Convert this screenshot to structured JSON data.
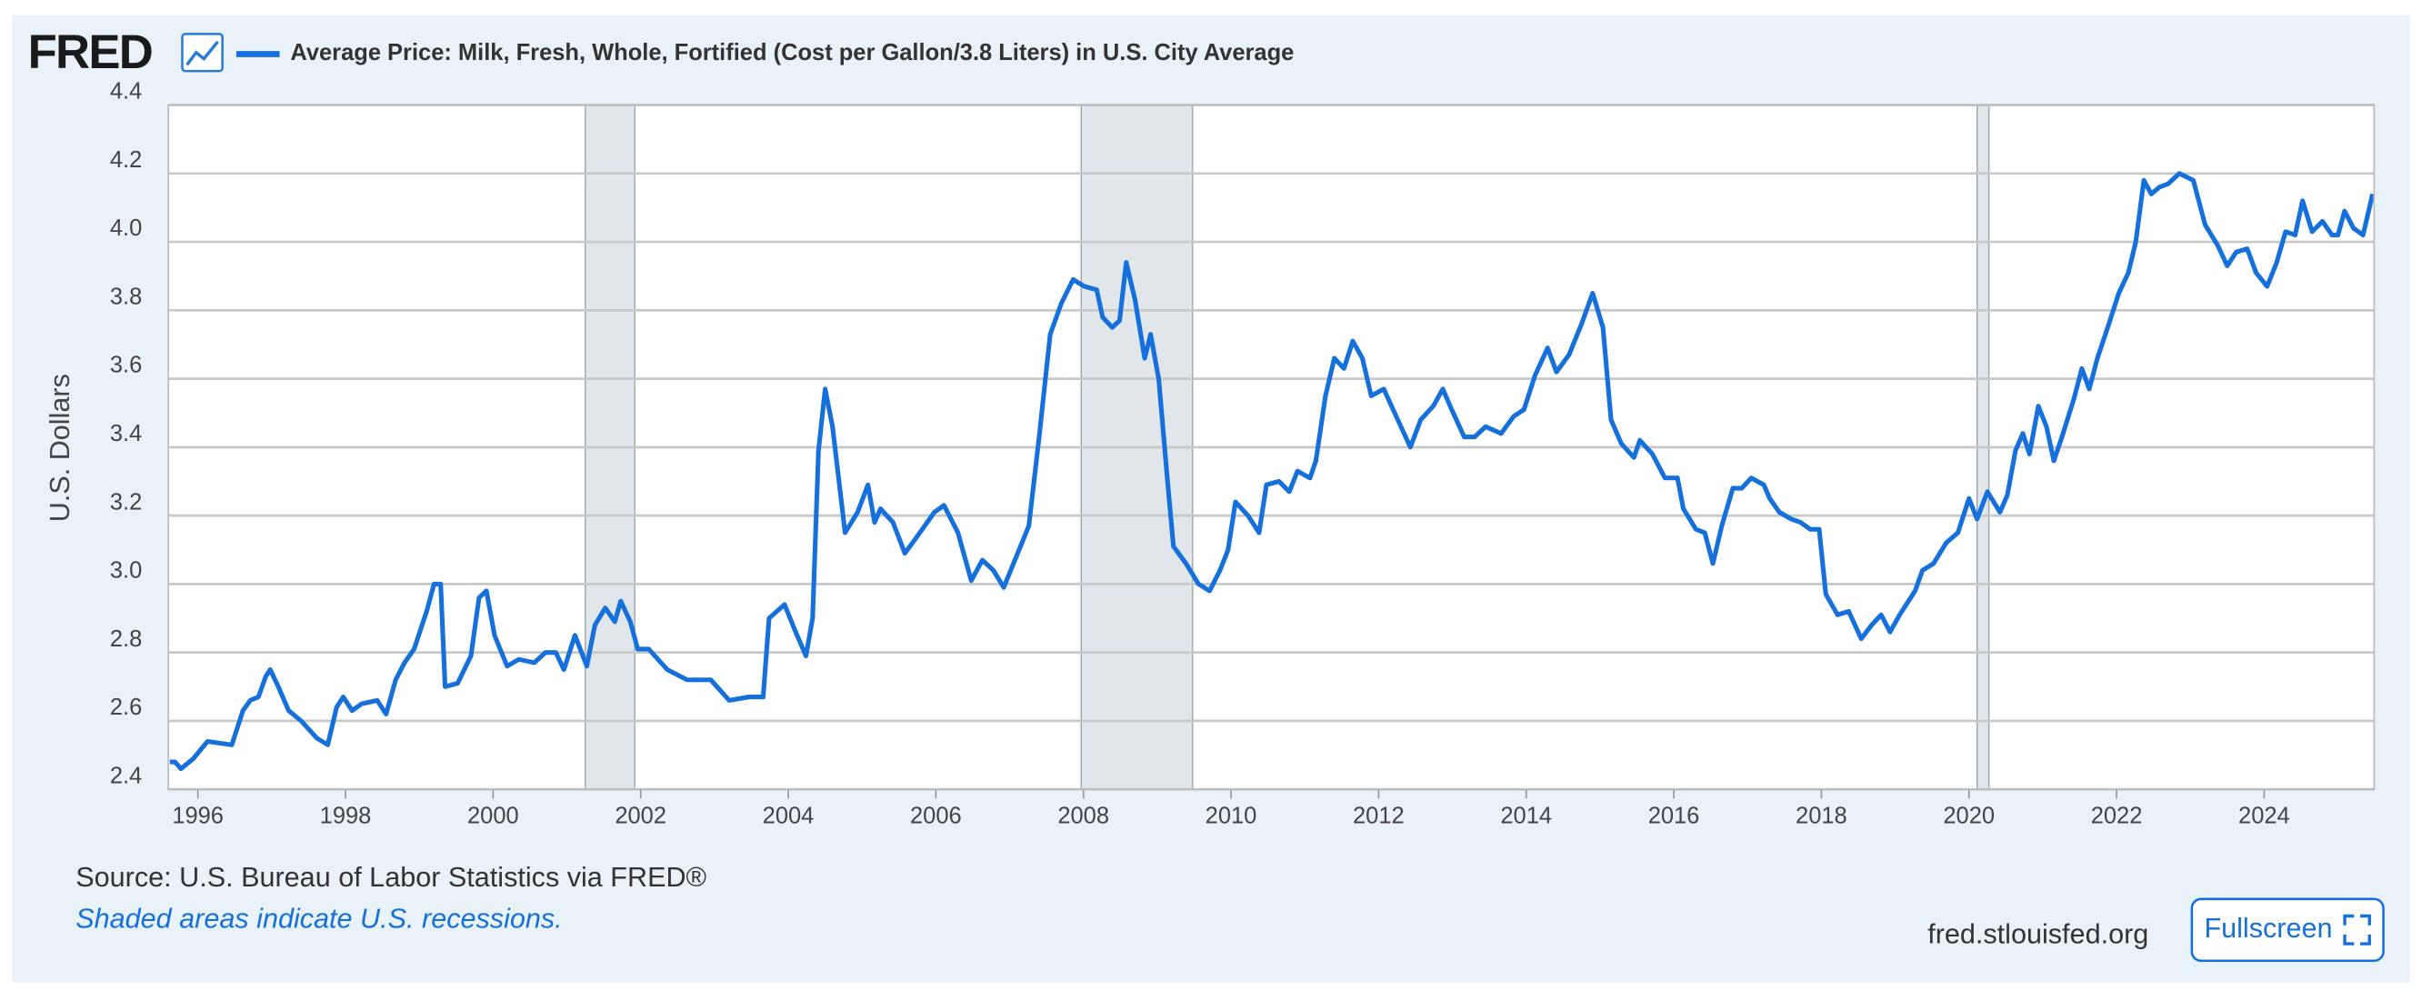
{
  "header": {
    "logo": "FRED"
  },
  "chart_data": {
    "type": "line",
    "ylabel": "U.S. Dollars",
    "xlim": [
      1995.6,
      2025.49
    ],
    "ylim": [
      2.4,
      4.4
    ],
    "xticks": [
      1996,
      1998,
      2000,
      2002,
      2004,
      2006,
      2008,
      2010,
      2012,
      2014,
      2016,
      2018,
      2020,
      2022,
      2024
    ],
    "yticks": [
      2.4,
      2.6,
      2.8,
      {
        "value": 3,
        "label": "3.0"
      },
      3.2,
      3.4,
      3.6,
      3.8,
      {
        "value": 4,
        "label": "4.0"
      },
      4.2,
      4.4
    ],
    "grid": true,
    "recessions": [
      [
        2001.25,
        2001.92
      ],
      [
        2007.97,
        2009.48
      ],
      [
        2020.11,
        2020.27
      ]
    ],
    "series": [
      {
        "name": "Average Price: Milk, Fresh, Whole, Fortified (Cost per Gallon/3.8 Liters) in U.S. City Average",
        "color": "#1670dc",
        "x": [
          1995.62,
          1995.69,
          1995.77,
          1995.94,
          1996.13,
          1996.46,
          1996.61,
          1996.71,
          1996.82,
          1996.92,
          1996.98,
          1997.09,
          1997.23,
          1997.4,
          1997.61,
          1997.76,
          1997.88,
          1997.97,
          1998.09,
          1998.22,
          1998.43,
          1998.55,
          1998.68,
          1998.8,
          1998.93,
          1999.1,
          1999.2,
          1999.29,
          1999.35,
          1999.52,
          1999.7,
          1999.81,
          1999.91,
          2000.02,
          2000.19,
          2000.35,
          2000.56,
          2000.71,
          2000.85,
          2000.96,
          2001.11,
          2001.27,
          2001.38,
          2001.52,
          2001.65,
          2001.73,
          2001.86,
          2001.96,
          2002.11,
          2002.36,
          2002.63,
          2002.95,
          2003.2,
          2003.47,
          2003.66,
          2003.74,
          2003.95,
          2004.1,
          2004.24,
          2004.33,
          2004.41,
          2004.5,
          2004.6,
          2004.77,
          2004.94,
          2005.08,
          2005.17,
          2005.25,
          2005.42,
          2005.58,
          2005.75,
          2005.98,
          2006.11,
          2006.3,
          2006.48,
          2006.63,
          2006.78,
          2006.92,
          2007.09,
          2007.26,
          2007.4,
          2007.55,
          2007.7,
          2007.86,
          2008.01,
          2008.18,
          2008.26,
          2008.39,
          2008.49,
          2008.58,
          2008.7,
          2008.83,
          2008.91,
          2009.02,
          2009.14,
          2009.22,
          2009.39,
          2009.56,
          2009.71,
          2009.85,
          2009.96,
          2010.06,
          2010.23,
          2010.38,
          2010.48,
          2010.65,
          2010.79,
          2010.9,
          2011.07,
          2011.15,
          2011.28,
          2011.4,
          2011.53,
          2011.65,
          2011.78,
          2011.9,
          2012.07,
          2012.26,
          2012.43,
          2012.57,
          2012.74,
          2012.87,
          2012.99,
          2013.16,
          2013.3,
          2013.45,
          2013.66,
          2013.83,
          2013.97,
          2014.12,
          2014.29,
          2014.41,
          2014.58,
          2014.75,
          2014.9,
          2015.04,
          2015.15,
          2015.29,
          2015.46,
          2015.54,
          2015.71,
          2015.88,
          2016.05,
          2016.13,
          2016.3,
          2016.42,
          2016.53,
          2016.65,
          2016.8,
          2016.92,
          2017.05,
          2017.22,
          2017.3,
          2017.43,
          2017.59,
          2017.72,
          2017.85,
          2017.97,
          2018.06,
          2018.22,
          2018.37,
          2018.54,
          2018.68,
          2018.81,
          2018.93,
          2019.06,
          2019.27,
          2019.37,
          2019.52,
          2019.69,
          2019.85,
          2020.0,
          2020.11,
          2020.25,
          2020.42,
          2020.52,
          2020.63,
          2020.73,
          2020.82,
          2020.94,
          2021.05,
          2021.15,
          2021.26,
          2021.42,
          2021.53,
          2021.63,
          2021.74,
          2021.88,
          2022.03,
          2022.16,
          2022.26,
          2022.37,
          2022.47,
          2022.58,
          2022.7,
          2022.85,
          2023.04,
          2023.2,
          2023.37,
          2023.5,
          2023.62,
          2023.77,
          2023.89,
          2024.04,
          2024.17,
          2024.29,
          2024.42,
          2024.52,
          2024.65,
          2024.79,
          2024.92,
          2025.0,
          2025.09,
          2025.21,
          2025.34,
          2025.47
        ],
        "values": [
          2.48,
          2.48,
          2.46,
          2.49,
          2.54,
          2.53,
          2.63,
          2.66,
          2.67,
          2.73,
          2.75,
          2.7,
          2.63,
          2.6,
          2.55,
          2.53,
          2.64,
          2.67,
          2.63,
          2.65,
          2.66,
          2.62,
          2.72,
          2.77,
          2.81,
          2.92,
          3.0,
          3.0,
          2.7,
          2.71,
          2.79,
          2.96,
          2.98,
          2.85,
          2.76,
          2.78,
          2.77,
          2.8,
          2.8,
          2.75,
          2.85,
          2.76,
          2.88,
          2.93,
          2.89,
          2.95,
          2.89,
          2.81,
          2.81,
          2.75,
          2.72,
          2.72,
          2.66,
          2.67,
          2.67,
          2.9,
          2.94,
          2.86,
          2.79,
          2.9,
          3.39,
          3.57,
          3.46,
          3.15,
          3.21,
          3.29,
          3.18,
          3.22,
          3.18,
          3.09,
          3.14,
          3.21,
          3.23,
          3.15,
          3.01,
          3.07,
          3.04,
          2.99,
          3.08,
          3.17,
          3.43,
          3.73,
          3.82,
          3.89,
          3.87,
          3.86,
          3.78,
          3.75,
          3.77,
          3.94,
          3.83,
          3.66,
          3.73,
          3.6,
          3.3,
          3.11,
          3.06,
          3.0,
          2.98,
          3.04,
          3.1,
          3.24,
          3.2,
          3.15,
          3.29,
          3.3,
          3.27,
          3.33,
          3.31,
          3.36,
          3.55,
          3.66,
          3.63,
          3.71,
          3.66,
          3.55,
          3.57,
          3.48,
          3.4,
          3.48,
          3.52,
          3.57,
          3.51,
          3.43,
          3.43,
          3.46,
          3.44,
          3.49,
          3.51,
          3.61,
          3.69,
          3.62,
          3.67,
          3.76,
          3.85,
          3.75,
          3.48,
          3.41,
          3.37,
          3.42,
          3.38,
          3.31,
          3.31,
          3.22,
          3.16,
          3.15,
          3.06,
          3.17,
          3.28,
          3.28,
          3.31,
          3.29,
          3.25,
          3.21,
          3.19,
          3.18,
          3.16,
          3.16,
          2.97,
          2.91,
          2.92,
          2.84,
          2.88,
          2.91,
          2.86,
          2.91,
          2.98,
          3.04,
          3.06,
          3.12,
          3.15,
          3.25,
          3.19,
          3.27,
          3.21,
          3.26,
          3.39,
          3.44,
          3.38,
          3.52,
          3.46,
          3.36,
          3.43,
          3.54,
          3.63,
          3.57,
          3.66,
          3.75,
          3.85,
          3.91,
          4.0,
          4.18,
          4.14,
          4.16,
          4.17,
          4.2,
          4.18,
          4.05,
          3.99,
          3.93,
          3.97,
          3.98,
          3.91,
          3.87,
          3.94,
          4.03,
          4.02,
          4.12,
          4.03,
          4.06,
          4.02,
          4.02,
          4.09,
          4.04,
          4.02,
          4.14
        ]
      }
    ],
    "source": "Source: U.S. Bureau of Labor Statistics via FRED®",
    "note": "Shaded areas indicate U.S. recessions."
  },
  "footer": {
    "site": "fred.stlouisfed.org",
    "button": "Fullscreen"
  }
}
